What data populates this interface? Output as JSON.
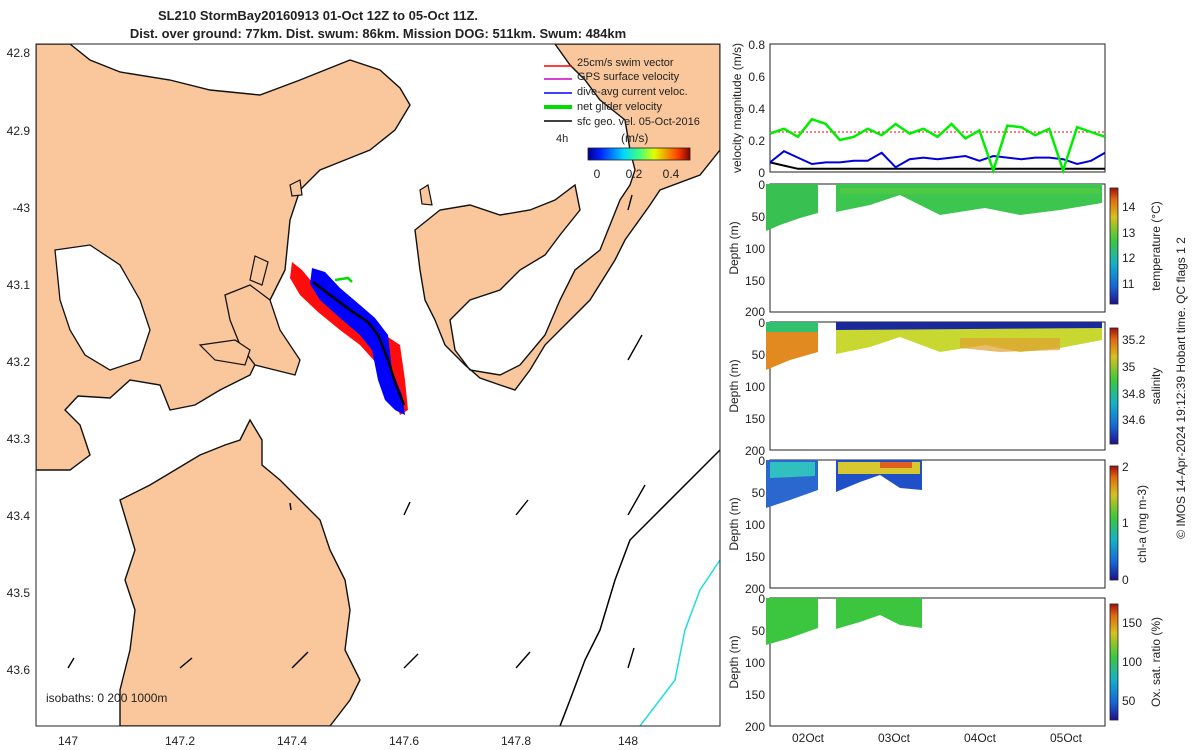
{
  "header": {
    "title_line1": "SL210 StormBay20160913 01-Oct 12Z to 05-Oct 11Z.",
    "title_line2": "Dist. over ground: 77km. Dist. swum: 86km. Mission DOG: 511km. Swum: 484km"
  },
  "map": {
    "lat_ticks": [
      "42.8",
      "42.9",
      "-43",
      "43.1",
      "43.2",
      "43.3",
      "43.4",
      "43.5",
      "43.6"
    ],
    "lon_ticks": [
      "147",
      "147.2",
      "147.4",
      "147.6",
      "147.8",
      "148"
    ],
    "legend": [
      {
        "label": "25cm/s swim vector",
        "color": "#ff0000"
      },
      {
        "label": "GPS surface velocity",
        "color": "#cc00cc"
      },
      {
        "label": "dive-avg current veloc.",
        "color": "#0000ff"
      },
      {
        "label": "net glider velocity",
        "color": "#00dd00"
      },
      {
        "label": "sfc geo. vel. 05-Oct-2016",
        "color": "#000000"
      }
    ],
    "legend_extra": "4h",
    "colorbar": {
      "label": "(m/s)",
      "ticks": [
        "0",
        "0.2",
        "0.4"
      ]
    },
    "isobaths_label": "isobaths: 0   200  1000m",
    "colors": {
      "land": "#f9c79b",
      "sea": "#ffffff",
      "track_swim": "#ff0000",
      "track_current": "#0000ff",
      "isobath_200": "#000000",
      "isobath_1000": "#22dddd"
    }
  },
  "chart_data": [
    {
      "type": "line",
      "ylabel": "velocity magnitude (m/s)",
      "ylim": [
        0,
        0.8
      ],
      "yticks": [
        "0",
        "0.2",
        "0.4",
        "0.6",
        "0.8"
      ],
      "series": [
        {
          "color": "#00ee00",
          "values": [
            0.24,
            0.27,
            0.22,
            0.33,
            0.3,
            0.2,
            0.22,
            0.27,
            0.23,
            0.3,
            0.24,
            0.27,
            0.22,
            0.3,
            0.21,
            0.26,
            0.01,
            0.29,
            0.28,
            0.23,
            0.27,
            0.01,
            0.28,
            0.25,
            0.22
          ]
        },
        {
          "color": "#0000dd",
          "values": [
            0.06,
            0.13,
            0.09,
            0.05,
            0.06,
            0.06,
            0.07,
            0.07,
            0.12,
            0.03,
            0.08,
            0.09,
            0.08,
            0.09,
            0.1,
            0.07,
            0.1,
            0.09,
            0.08,
            0.09,
            0.09,
            0.08,
            0.05,
            0.07,
            0.12
          ]
        },
        {
          "color": "#000000",
          "values": [
            0.06,
            0.04,
            0.02,
            0.02,
            0.02,
            0.02,
            0.02,
            0.02,
            0.02,
            0.02,
            0.02,
            0.02,
            0.02,
            0.02,
            0.02,
            0.02,
            0.02,
            0.02,
            0.02,
            0.02,
            0.02,
            0.02,
            0.02,
            0.02,
            0.02
          ]
        },
        {
          "color": "#ff0000",
          "values": [
            0.25,
            0.25,
            0.25,
            0.25,
            0.25,
            0.25,
            0.25,
            0.25,
            0.25,
            0.25,
            0.25,
            0.25,
            0.25,
            0.25,
            0.25,
            0.25,
            0.25,
            0.25,
            0.25,
            0.25,
            0.25,
            0.25,
            0.25,
            0.25,
            0.25
          ]
        }
      ]
    },
    {
      "type": "heatmap",
      "ylabel": "Depth (m)",
      "ylim": [
        0,
        200
      ],
      "yticks": [
        "0",
        "50",
        "100",
        "150",
        "200"
      ],
      "colorbar_label": "temperature (°C)",
      "colorbar_ticks": [
        "11",
        "12",
        "13",
        "14"
      ]
    },
    {
      "type": "heatmap",
      "ylabel": "Depth (m)",
      "ylim": [
        0,
        200
      ],
      "yticks": [
        "0",
        "50",
        "100",
        "150",
        "200"
      ],
      "colorbar_label": "salinity",
      "colorbar_ticks": [
        "34.6",
        "34.8",
        "35",
        "35.2"
      ]
    },
    {
      "type": "heatmap",
      "ylabel": "Depth (m)",
      "ylim": [
        0,
        200
      ],
      "yticks": [
        "0",
        "50",
        "100",
        "150",
        "200"
      ],
      "colorbar_label": "chl-a (mg m-3)",
      "colorbar_ticks": [
        "0",
        "1",
        "2"
      ]
    },
    {
      "type": "heatmap",
      "ylabel": "Depth (m)",
      "ylim": [
        0,
        200
      ],
      "yticks": [
        "0",
        "50",
        "100",
        "150",
        "200"
      ],
      "colorbar_label": "Ox. sat. ratio (%)",
      "colorbar_ticks": [
        "50",
        "100",
        "150"
      ],
      "xticks": [
        "02Oct",
        "03Oct",
        "04Oct",
        "05Oct"
      ]
    }
  ],
  "footer": {
    "side_note": "© IMOS 14-Apr-2024 19:12:39 Hobart time. QC flags 1  2"
  }
}
